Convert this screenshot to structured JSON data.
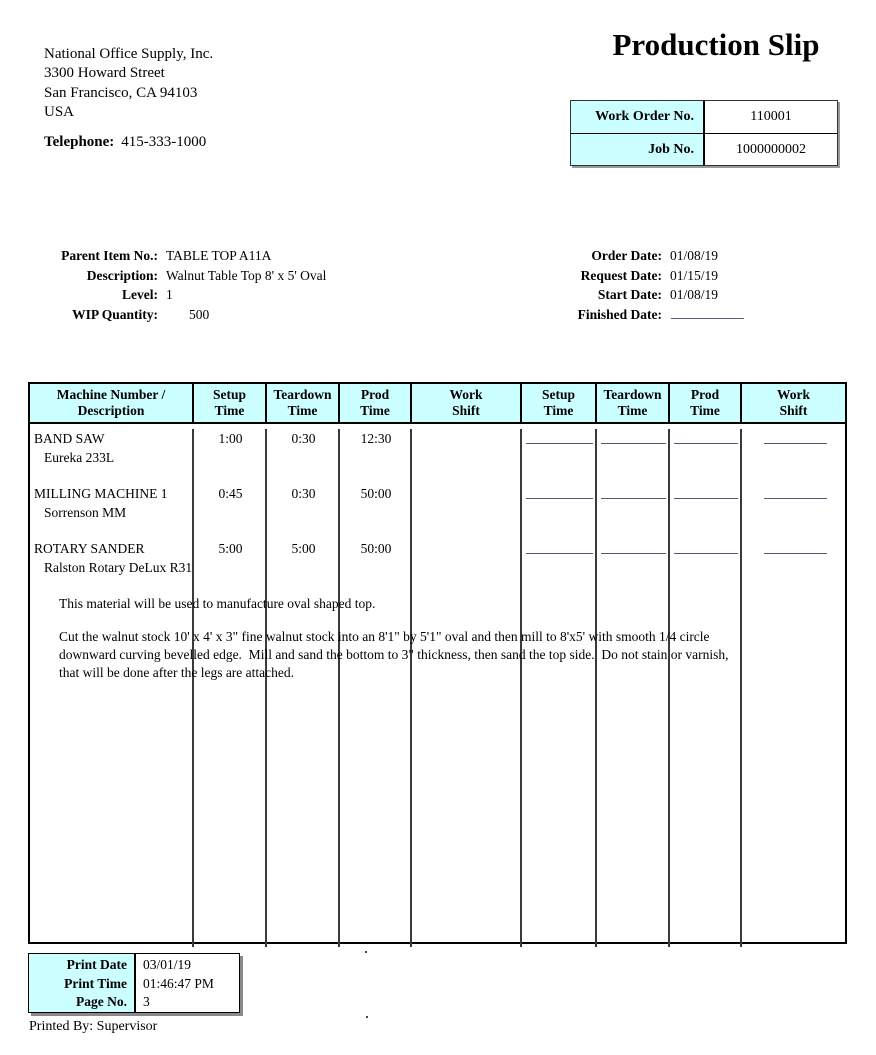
{
  "company": {
    "name": "National Office Supply, Inc.",
    "address1": "3300 Howard Street",
    "address2": "San Francisco, CA 94103",
    "address3": "USA",
    "phone_label": "Telephone:",
    "phone": "415-333-1000"
  },
  "title": "Production Slip",
  "order_box": {
    "rows": [
      {
        "label": "Work Order No.",
        "value": "110001"
      },
      {
        "label": "Job No.",
        "value": "1000000002"
      }
    ]
  },
  "item_info": {
    "rows": [
      {
        "label": "Parent Item No.:",
        "value": "TABLE TOP A11A"
      },
      {
        "label": "Description:",
        "value": "Walnut Table Top 8' x 5' Oval"
      },
      {
        "label": "Level:",
        "value": "1"
      },
      {
        "label": "WIP Quantity:",
        "value": "500"
      }
    ]
  },
  "dates": {
    "rows": [
      {
        "label": "Order Date:",
        "value": "01/08/19"
      },
      {
        "label": "Request Date:",
        "value": "01/15/19"
      },
      {
        "label": "Start Date:",
        "value": "01/08/19"
      },
      {
        "label": "Finished Date:",
        "value": ""
      }
    ]
  },
  "machine_table": {
    "headers": [
      {
        "line1": "Machine Number /",
        "line2": "Description"
      },
      {
        "line1": "Setup",
        "line2": "Time"
      },
      {
        "line1": "Teardown",
        "line2": "Time"
      },
      {
        "line1": "Prod",
        "line2": "Time"
      },
      {
        "line1": "Work",
        "line2": "Shift"
      },
      {
        "line1": "Setup",
        "line2": "Time"
      },
      {
        "line1": "Teardown",
        "line2": "Time"
      },
      {
        "line1": "Prod",
        "line2": "Time"
      },
      {
        "line1": "Work",
        "line2": "Shift"
      }
    ],
    "rows": [
      {
        "machine": "BAND SAW",
        "model": "Eureka 233L",
        "setup_time": "1:00",
        "teardown_time": "0:30",
        "prod_time": "12:30",
        "work_shift": ""
      },
      {
        "machine": "MILLING MACHINE 1",
        "model": "Sorrenson MM",
        "setup_time": "0:45",
        "teardown_time": "0:30",
        "prod_time": "50:00",
        "work_shift": ""
      },
      {
        "machine": "ROTARY SANDER",
        "model": "Ralston Rotary DeLux R31",
        "setup_time": "5:00",
        "teardown_time": "5:00",
        "prod_time": "50:00",
        "work_shift": ""
      }
    ],
    "notes": {
      "intro": "This material will be used to manufacture oval shaped top.",
      "line1": "Cut the walnut stock 10' x 4' x 3\" fine walnut stock into an 8'1\" by 5'1\" oval and then mill to 8'x5' with smooth 1/4 circle",
      "line2": "downward curving bevelled edge.  Mill and sand the bottom to 3\" thickness, then sand the top side.  Do not stain or varnish,",
      "line3": "that will be done after the legs are attached."
    }
  },
  "print_box": {
    "rows": [
      {
        "label": "Print Date",
        "value": "03/01/19"
      },
      {
        "label": "Print Time",
        "value": "01:46:47 PM"
      },
      {
        "label": "Page No.",
        "value": "3"
      }
    ]
  },
  "printed_by": "Printed By: Supervisor",
  "colors": {
    "highlight": "#ccffff",
    "border": "#000000",
    "blank_line": "#4f5a78"
  }
}
